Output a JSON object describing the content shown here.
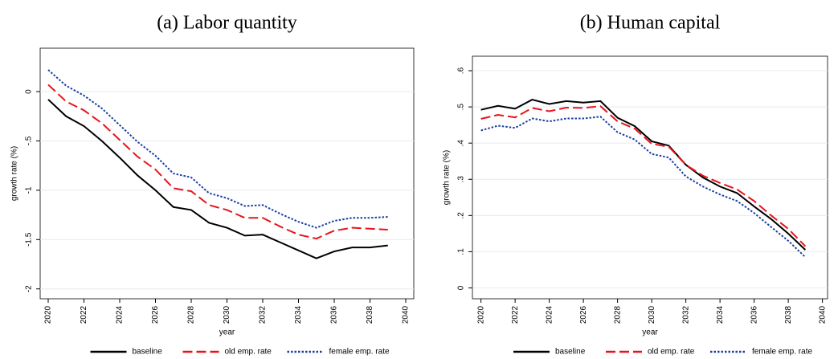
{
  "chart_data": [
    {
      "type": "line",
      "title": "(a) Labor quantity",
      "x_label": "year",
      "y_label": "growth rate (%)",
      "x": [
        2020,
        2021,
        2022,
        2023,
        2024,
        2025,
        2026,
        2027,
        2028,
        2029,
        2030,
        2031,
        2032,
        2033,
        2034,
        2035,
        2036,
        2037,
        2038,
        2039
      ],
      "xlim": [
        2019.55,
        2040.45
      ],
      "xticks": [
        2020,
        2022,
        2024,
        2026,
        2028,
        2030,
        2032,
        2034,
        2036,
        2038,
        2040
      ],
      "ylim": [
        -2.1,
        0.44
      ],
      "yticks": [
        0,
        {
          "value": -0.5,
          "label": "-.5"
        },
        -1,
        -1.5,
        -2
      ],
      "grid": true,
      "series": [
        {
          "name": "baseline",
          "color": "#000000",
          "dash": "solid",
          "values": [
            -0.08,
            -0.25,
            -0.35,
            -0.5,
            -0.67,
            -0.85,
            -1.0,
            -1.17,
            -1.2,
            -1.33,
            -1.38,
            -1.46,
            -1.45,
            -1.53,
            -1.61,
            -1.69,
            -1.62,
            -1.58,
            -1.58,
            -1.56
          ]
        },
        {
          "name": "old emp. rate",
          "color": "#e8141c",
          "dash": "dashed",
          "values": [
            0.07,
            -0.1,
            -0.19,
            -0.32,
            -0.49,
            -0.66,
            -0.79,
            -0.98,
            -1.01,
            -1.15,
            -1.2,
            -1.28,
            -1.28,
            -1.37,
            -1.45,
            -1.49,
            -1.41,
            -1.38,
            -1.39,
            -1.4
          ]
        },
        {
          "name": "female emp. rate",
          "color": "#1a3fa0",
          "dash": "dotted",
          "values": [
            0.22,
            0.06,
            -0.04,
            -0.17,
            -0.34,
            -0.51,
            -0.65,
            -0.83,
            -0.87,
            -1.03,
            -1.08,
            -1.16,
            -1.15,
            -1.24,
            -1.32,
            -1.38,
            -1.31,
            -1.28,
            -1.28,
            -1.27
          ]
        }
      ]
    },
    {
      "type": "line",
      "title": "(b) Human capital",
      "x_label": "year",
      "y_label": "growth rate (%)",
      "x": [
        2020,
        2021,
        2022,
        2023,
        2024,
        2025,
        2026,
        2027,
        2028,
        2029,
        2030,
        2031,
        2032,
        2033,
        2034,
        2035,
        2036,
        2037,
        2038,
        2039
      ],
      "xlim": [
        2019.5,
        2040.3
      ],
      "xticks": [
        2020,
        2022,
        2024,
        2026,
        2028,
        2030,
        2032,
        2034,
        2036,
        2038,
        2040
      ],
      "ylim": [
        -0.03,
        0.64
      ],
      "yticks": [
        0,
        {
          "value": 0.1,
          "label": ".1"
        },
        {
          "value": 0.2,
          "label": ".2"
        },
        {
          "value": 0.3,
          "label": ".3"
        },
        {
          "value": 0.4,
          "label": ".4"
        },
        {
          "value": 0.5,
          "label": ".5"
        },
        {
          "value": 0.6,
          "label": ".6"
        }
      ],
      "grid": true,
      "series": [
        {
          "name": "baseline",
          "color": "#000000",
          "dash": "solid",
          "values": [
            0.492,
            0.503,
            0.495,
            0.52,
            0.508,
            0.516,
            0.512,
            0.516,
            0.47,
            0.447,
            0.405,
            0.393,
            0.34,
            0.305,
            0.28,
            0.262,
            0.225,
            0.19,
            0.15,
            0.105
          ]
        },
        {
          "name": "old emp. rate",
          "color": "#e8141c",
          "dash": "dashed",
          "values": [
            0.467,
            0.478,
            0.471,
            0.497,
            0.488,
            0.498,
            0.497,
            0.502,
            0.46,
            0.44,
            0.398,
            0.39,
            0.34,
            0.31,
            0.29,
            0.272,
            0.24,
            0.2,
            0.163,
            0.115
          ]
        },
        {
          "name": "female emp. rate",
          "color": "#1a3fa0",
          "dash": "dotted",
          "values": [
            0.435,
            0.448,
            0.442,
            0.468,
            0.46,
            0.468,
            0.468,
            0.473,
            0.43,
            0.41,
            0.37,
            0.36,
            0.308,
            0.28,
            0.258,
            0.24,
            0.207,
            0.168,
            0.13,
            0.085
          ]
        }
      ]
    }
  ]
}
